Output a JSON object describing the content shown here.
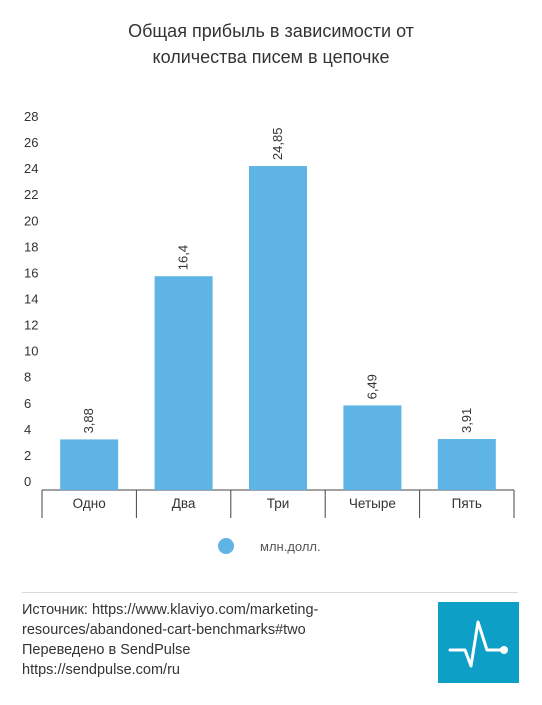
{
  "chart_data": {
    "type": "bar",
    "title_lines": [
      "Общая прибыль в зависимости от",
      "количества писем в цепочке"
    ],
    "categories": [
      "Одно",
      "Два",
      "Три",
      "Четыре",
      "Пять"
    ],
    "series": [
      {
        "name": "млн.долл.",
        "values": [
          3.88,
          16.4,
          24.85,
          6.49,
          3.91
        ]
      }
    ],
    "data_labels": [
      "3,88",
      "16,4",
      "24,85",
      "6,49",
      "3,91"
    ],
    "yticks": [
      "0",
      "2",
      "4",
      "6",
      "8",
      "10",
      "12",
      "14",
      "16",
      "18",
      "20",
      "22",
      "24",
      "26",
      "28"
    ],
    "ylim": [
      0,
      28
    ],
    "xlabel": "",
    "ylabel": "",
    "grid": false,
    "legend_position": "bottom",
    "bar_color": "#5eb4e4"
  },
  "footer": {
    "lines": [
      "Источник: https://www.klaviyo.com/marketing-",
      "resources/abandoned-cart-benchmarks#two",
      "Переведено в SendPulse",
      "https://sendpulse.com/ru"
    ]
  },
  "logo": {
    "icon": "pulse-line-icon",
    "color": "#0e9fc6"
  }
}
